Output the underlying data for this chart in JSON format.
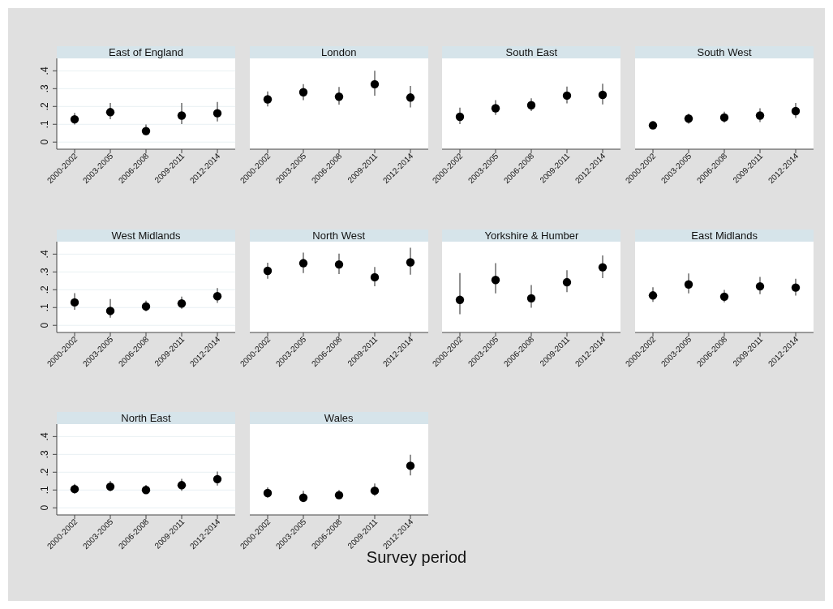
{
  "chart_data": [
    {
      "type": "scatter",
      "title": "East of England",
      "categories": [
        "2000-2002",
        "2003-2005",
        "2006-2008",
        "2009-2011",
        "2012-2014"
      ],
      "color": "#000000",
      "marker": "circle",
      "grid": "y",
      "ylim": [
        -0.04,
        0.47
      ],
      "yticks": [
        {
          "value": 0,
          "label": "0"
        },
        {
          "value": 0.1,
          "label": ".1"
        },
        {
          "value": 0.2,
          "label": ".2"
        },
        {
          "value": 0.3,
          "label": ".3"
        },
        {
          "value": 0.4,
          "label": ".4"
        }
      ],
      "values": [
        0.128,
        0.168,
        0.062,
        0.149,
        0.162
      ],
      "errors": [
        [
          0.099,
          0.164
        ],
        [
          0.128,
          0.219
        ],
        [
          0.038,
          0.099
        ],
        [
          0.101,
          0.219
        ],
        [
          0.116,
          0.225
        ]
      ]
    },
    {
      "type": "scatter",
      "title": "London",
      "categories": [
        "2000-2002",
        "2003-2005",
        "2006-2008",
        "2009-2011",
        "2012-2014"
      ],
      "color": "#000000",
      "marker": "circle",
      "grid": "y",
      "tick_labels": "x",
      "ylim": [
        -0.04,
        0.47
      ],
      "yticks": [
        {
          "value": 0,
          "label": null
        },
        {
          "value": 0.1,
          "label": null
        },
        {
          "value": 0.2,
          "label": null
        },
        {
          "value": 0.3,
          "label": null
        },
        {
          "value": 0.4,
          "label": null
        }
      ],
      "values": [
        0.24,
        0.28,
        0.255,
        0.325,
        0.25
      ],
      "errors": [
        [
          0.2,
          0.285
        ],
        [
          0.235,
          0.325
        ],
        [
          0.21,
          0.31
        ],
        [
          0.26,
          0.4
        ],
        [
          0.195,
          0.315
        ]
      ]
    },
    {
      "type": "scatter",
      "title": "South East",
      "categories": [
        "2000-2002",
        "2003-2005",
        "2006-2008",
        "2009-2011",
        "2012-2014"
      ],
      "color": "#000000",
      "marker": "circle",
      "grid": "y",
      "tick_labels": "x",
      "ylim": [
        -0.04,
        0.47
      ],
      "yticks": [
        {
          "value": 0,
          "label": null
        },
        {
          "value": 0.1,
          "label": null
        },
        {
          "value": 0.2,
          "label": null
        },
        {
          "value": 0.3,
          "label": null
        },
        {
          "value": 0.4,
          "label": null
        }
      ],
      "values": [
        0.142,
        0.19,
        0.207,
        0.261,
        0.265
      ],
      "errors": [
        [
          0.101,
          0.193
        ],
        [
          0.152,
          0.236
        ],
        [
          0.174,
          0.246
        ],
        [
          0.217,
          0.312
        ],
        [
          0.212,
          0.328
        ]
      ]
    },
    {
      "type": "scatter",
      "title": "South West",
      "categories": [
        "2000-2002",
        "2003-2005",
        "2006-2008",
        "2009-2011",
        "2012-2014"
      ],
      "color": "#000000",
      "marker": "circle",
      "grid": "y",
      "tick_labels": "x",
      "ylim": [
        -0.04,
        0.47
      ],
      "yticks": [
        {
          "value": 0,
          "label": null
        },
        {
          "value": 0.1,
          "label": null
        },
        {
          "value": 0.2,
          "label": null
        },
        {
          "value": 0.3,
          "label": null
        },
        {
          "value": 0.4,
          "label": null
        }
      ],
      "values": [
        0.094,
        0.132,
        0.138,
        0.149,
        0.174
      ],
      "errors": [
        [
          0.088,
          0.1
        ],
        [
          0.104,
          0.159
        ],
        [
          0.109,
          0.171
        ],
        [
          0.113,
          0.19
        ],
        [
          0.135,
          0.22
        ]
      ]
    },
    {
      "type": "scatter",
      "title": "West Midlands",
      "categories": [
        "2000-2002",
        "2003-2005",
        "2006-2008",
        "2009-2011",
        "2012-2014"
      ],
      "color": "#000000",
      "marker": "circle",
      "grid": "y",
      "ylim": [
        -0.04,
        0.47
      ],
      "yticks": [
        {
          "value": 0,
          "label": "0"
        },
        {
          "value": 0.1,
          "label": ".1"
        },
        {
          "value": 0.2,
          "label": ".2"
        },
        {
          "value": 0.3,
          "label": ".3"
        },
        {
          "value": 0.4,
          "label": ".4"
        }
      ],
      "values": [
        0.129,
        0.081,
        0.106,
        0.123,
        0.164
      ],
      "errors": [
        [
          0.088,
          0.181
        ],
        [
          0.043,
          0.148
        ],
        [
          0.08,
          0.139
        ],
        [
          0.093,
          0.162
        ],
        [
          0.126,
          0.209
        ]
      ]
    },
    {
      "type": "scatter",
      "title": "North West",
      "categories": [
        "2000-2002",
        "2003-2005",
        "2006-2008",
        "2009-2011",
        "2012-2014"
      ],
      "color": "#000000",
      "marker": "circle",
      "grid": "y",
      "tick_labels": "x",
      "ylim": [
        -0.04,
        0.47
      ],
      "yticks": [
        {
          "value": 0,
          "label": null
        },
        {
          "value": 0.1,
          "label": null
        },
        {
          "value": 0.2,
          "label": null
        },
        {
          "value": 0.3,
          "label": null
        },
        {
          "value": 0.4,
          "label": null
        }
      ],
      "values": [
        0.306,
        0.349,
        0.342,
        0.27,
        0.354
      ],
      "errors": [
        [
          0.262,
          0.352
        ],
        [
          0.294,
          0.409
        ],
        [
          0.288,
          0.403
        ],
        [
          0.219,
          0.328
        ],
        [
          0.284,
          0.436
        ]
      ]
    },
    {
      "type": "scatter",
      "title": "Yorkshire & Humber",
      "categories": [
        "2000-2002",
        "2003-2005",
        "2006-2008",
        "2009-2011",
        "2012-2014"
      ],
      "color": "#000000",
      "marker": "circle",
      "grid": "y",
      "tick_labels": "x",
      "ylim": [
        -0.04,
        0.47
      ],
      "yticks": [
        {
          "value": 0,
          "label": null
        },
        {
          "value": 0.1,
          "label": null
        },
        {
          "value": 0.2,
          "label": null
        },
        {
          "value": 0.3,
          "label": null
        },
        {
          "value": 0.4,
          "label": null
        }
      ],
      "values": [
        0.143,
        0.255,
        0.152,
        0.242,
        0.326
      ],
      "errors": [
        [
          0.062,
          0.294
        ],
        [
          0.18,
          0.349
        ],
        [
          0.099,
          0.226
        ],
        [
          0.187,
          0.309
        ],
        [
          0.265,
          0.393
        ]
      ]
    },
    {
      "type": "scatter",
      "title": "East Midlands",
      "categories": [
        "2000-2002",
        "2003-2005",
        "2006-2008",
        "2009-2011",
        "2012-2014"
      ],
      "color": "#000000",
      "marker": "circle",
      "grid": "y",
      "tick_labels": "x",
      "ylim": [
        -0.04,
        0.47
      ],
      "yticks": [
        {
          "value": 0,
          "label": null
        },
        {
          "value": 0.1,
          "label": null
        },
        {
          "value": 0.2,
          "label": null
        },
        {
          "value": 0.3,
          "label": null
        },
        {
          "value": 0.4,
          "label": null
        }
      ],
      "values": [
        0.168,
        0.23,
        0.161,
        0.219,
        0.212
      ],
      "errors": [
        [
          0.132,
          0.214
        ],
        [
          0.18,
          0.291
        ],
        [
          0.13,
          0.199
        ],
        [
          0.175,
          0.272
        ],
        [
          0.167,
          0.262
        ]
      ]
    },
    {
      "type": "scatter",
      "title": "North East",
      "categories": [
        "2000-2002",
        "2003-2005",
        "2006-2008",
        "2009-2011",
        "2012-2014"
      ],
      "color": "#000000",
      "marker": "circle",
      "grid": "y",
      "ylim": [
        -0.04,
        0.47
      ],
      "yticks": [
        {
          "value": 0,
          "label": "0"
        },
        {
          "value": 0.1,
          "label": ".1"
        },
        {
          "value": 0.2,
          "label": ".2"
        },
        {
          "value": 0.3,
          "label": ".3"
        },
        {
          "value": 0.4,
          "label": ".4"
        }
      ],
      "values": [
        0.105,
        0.119,
        0.1,
        0.127,
        0.161
      ],
      "errors": [
        [
          0.08,
          0.134
        ],
        [
          0.093,
          0.151
        ],
        [
          0.08,
          0.129
        ],
        [
          0.095,
          0.163
        ],
        [
          0.125,
          0.204
        ]
      ]
    },
    {
      "type": "scatter",
      "title": "Wales",
      "xlabel": "Survey period",
      "categories": [
        "2000-2002",
        "2003-2005",
        "2006-2008",
        "2009-2011",
        "2012-2014"
      ],
      "color": "#000000",
      "marker": "circle",
      "grid": "y",
      "tick_labels": "x",
      "ylim": [
        -0.04,
        0.47
      ],
      "yticks": [
        {
          "value": 0,
          "label": null
        },
        {
          "value": 0.1,
          "label": null
        },
        {
          "value": 0.2,
          "label": null
        },
        {
          "value": 0.3,
          "label": null
        },
        {
          "value": 0.4,
          "label": null
        }
      ],
      "values": [
        0.083,
        0.057,
        0.071,
        0.096,
        0.236
      ],
      "errors": [
        [
          0.057,
          0.115
        ],
        [
          0.032,
          0.095
        ],
        [
          0.051,
          0.1
        ],
        [
          0.067,
          0.137
        ],
        [
          0.182,
          0.298
        ]
      ]
    }
  ]
}
